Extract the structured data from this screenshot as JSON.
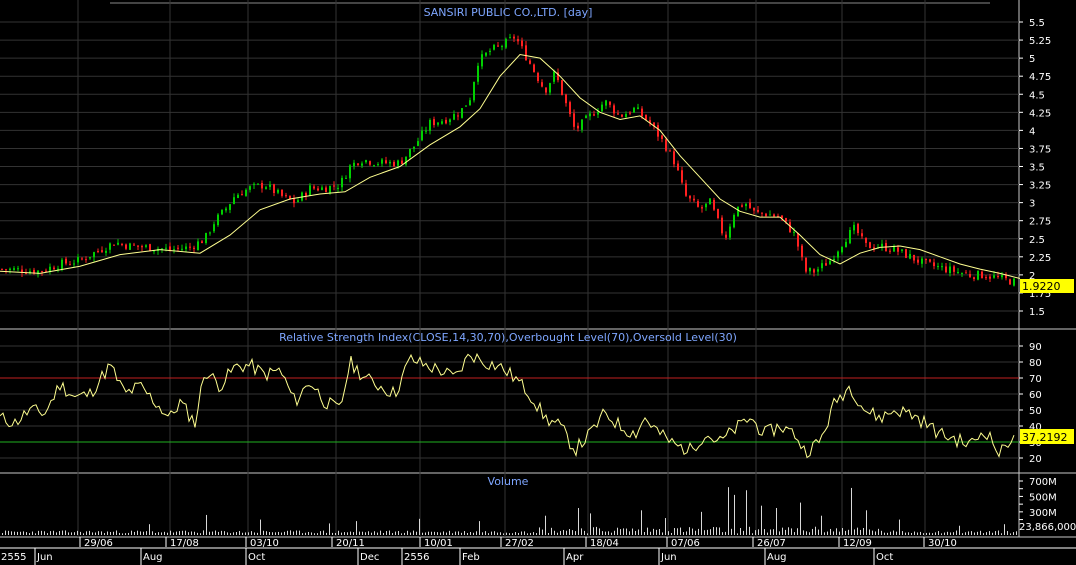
{
  "chart_data": [
    {
      "panel": "price",
      "type": "candlestick",
      "title": "SANSIRI PUBLIC CO.,LTD. [day]",
      "y_ticks": [
        "5.5",
        "5.25",
        "5",
        "4.75",
        "4.5",
        "4.25",
        "4",
        "3.75",
        "3.5",
        "3.25",
        "3",
        "2.75",
        "2.5",
        "2.25",
        "2",
        "1.75",
        "1.5"
      ],
      "ylim": [
        1.35,
        5.7
      ],
      "last_value_label": "1.9220",
      "series": [
        {
          "kind": "candles",
          "color_up": "#00d000",
          "color_down": "#ff2020",
          "x_range": [
            0,
            1020
          ],
          "close_path": [
            [
              0,
              2.08
            ],
            [
              20,
              2.07
            ],
            [
              40,
              2.05
            ],
            [
              60,
              2.15
            ],
            [
              80,
              2.2
            ],
            [
              100,
              2.35
            ],
            [
              115,
              2.45
            ],
            [
              130,
              2.4
            ],
            [
              150,
              2.38
            ],
            [
              170,
              2.35
            ],
            [
              190,
              2.38
            ],
            [
              205,
              2.5
            ],
            [
              215,
              2.75
            ],
            [
              225,
              2.9
            ],
            [
              235,
              3.1
            ],
            [
              250,
              3.2
            ],
            [
              265,
              3.25
            ],
            [
              280,
              3.1
            ],
            [
              295,
              3.0
            ],
            [
              310,
              3.2
            ],
            [
              325,
              3.2
            ],
            [
              340,
              3.25
            ],
            [
              350,
              3.5
            ],
            [
              360,
              3.6
            ],
            [
              380,
              3.55
            ],
            [
              400,
              3.55
            ],
            [
              415,
              3.8
            ],
            [
              430,
              4.1
            ],
            [
              445,
              4.15
            ],
            [
              460,
              4.25
            ],
            [
              470,
              4.45
            ],
            [
              478,
              4.95
            ],
            [
              490,
              5.1
            ],
            [
              505,
              5.2
            ],
            [
              515,
              5.3
            ],
            [
              525,
              5.05
            ],
            [
              535,
              4.8
            ],
            [
              545,
              4.55
            ],
            [
              555,
              4.8
            ],
            [
              565,
              4.4
            ],
            [
              575,
              4.0
            ],
            [
              590,
              4.2
            ],
            [
              605,
              4.4
            ],
            [
              620,
              4.2
            ],
            [
              635,
              4.3
            ],
            [
              650,
              4.1
            ],
            [
              665,
              3.8
            ],
            [
              675,
              3.55
            ],
            [
              685,
              3.1
            ],
            [
              700,
              2.9
            ],
            [
              710,
              3.0
            ],
            [
              725,
              2.5
            ],
            [
              735,
              2.9
            ],
            [
              745,
              3.0
            ],
            [
              755,
              2.85
            ],
            [
              765,
              2.85
            ],
            [
              780,
              2.8
            ],
            [
              795,
              2.55
            ],
            [
              805,
              2.05
            ],
            [
              815,
              2.05
            ],
            [
              830,
              2.2
            ],
            [
              845,
              2.5
            ],
            [
              855,
              2.65
            ],
            [
              865,
              2.4
            ],
            [
              880,
              2.4
            ],
            [
              895,
              2.35
            ],
            [
              910,
              2.25
            ],
            [
              925,
              2.15
            ],
            [
              940,
              2.1
            ],
            [
              955,
              2.05
            ],
            [
              970,
              2.0
            ],
            [
              985,
              2.0
            ],
            [
              1000,
              1.95
            ],
            [
              1015,
              1.9
            ]
          ]
        },
        {
          "kind": "moving-average",
          "color": "#ffff90",
          "path": [
            [
              0,
              2.05
            ],
            [
              40,
              2.02
            ],
            [
              80,
              2.12
            ],
            [
              120,
              2.28
            ],
            [
              160,
              2.35
            ],
            [
              200,
              2.3
            ],
            [
              230,
              2.55
            ],
            [
              260,
              2.9
            ],
            [
              290,
              3.05
            ],
            [
              320,
              3.12
            ],
            [
              345,
              3.15
            ],
            [
              370,
              3.35
            ],
            [
              400,
              3.5
            ],
            [
              430,
              3.8
            ],
            [
              460,
              4.05
            ],
            [
              480,
              4.3
            ],
            [
              500,
              4.75
            ],
            [
              520,
              5.05
            ],
            [
              540,
              5.0
            ],
            [
              560,
              4.75
            ],
            [
              580,
              4.45
            ],
            [
              600,
              4.25
            ],
            [
              620,
              4.15
            ],
            [
              640,
              4.2
            ],
            [
              660,
              4.0
            ],
            [
              680,
              3.65
            ],
            [
              700,
              3.35
            ],
            [
              720,
              3.05
            ],
            [
              740,
              2.88
            ],
            [
              760,
              2.8
            ],
            [
              780,
              2.8
            ],
            [
              800,
              2.55
            ],
            [
              820,
              2.28
            ],
            [
              840,
              2.15
            ],
            [
              860,
              2.3
            ],
            [
              880,
              2.38
            ],
            [
              900,
              2.4
            ],
            [
              920,
              2.35
            ],
            [
              940,
              2.25
            ],
            [
              960,
              2.15
            ],
            [
              980,
              2.08
            ],
            [
              1000,
              2.02
            ],
            [
              1020,
              1.95
            ]
          ]
        }
      ]
    },
    {
      "panel": "rsi",
      "type": "line",
      "title": "Relative Strength Index(CLOSE,14,30,70),Overbought Level(70),Oversold Level(30)",
      "y_ticks": [
        "90",
        "80",
        "70",
        "60",
        "50",
        "40",
        "30",
        "20"
      ],
      "ylim": [
        10,
        95
      ],
      "overbought": 70,
      "oversold": 30,
      "last_value_label": "37.2192",
      "line_color": "#ffff90",
      "path": [
        [
          0,
          45
        ],
        [
          15,
          42
        ],
        [
          30,
          50
        ],
        [
          45,
          48
        ],
        [
          60,
          66
        ],
        [
          75,
          58
        ],
        [
          90,
          60
        ],
        [
          110,
          78
        ],
        [
          125,
          60
        ],
        [
          140,
          65
        ],
        [
          155,
          55
        ],
        [
          170,
          45
        ],
        [
          180,
          55
        ],
        [
          195,
          42
        ],
        [
          205,
          75
        ],
        [
          220,
          65
        ],
        [
          235,
          77
        ],
        [
          250,
          78
        ],
        [
          265,
          72
        ],
        [
          280,
          75
        ],
        [
          295,
          55
        ],
        [
          310,
          68
        ],
        [
          325,
          55
        ],
        [
          340,
          50
        ],
        [
          350,
          80
        ],
        [
          365,
          70
        ],
        [
          380,
          65
        ],
        [
          395,
          60
        ],
        [
          410,
          82
        ],
        [
          425,
          78
        ],
        [
          440,
          75
        ],
        [
          455,
          70
        ],
        [
          470,
          85
        ],
        [
          485,
          80
        ],
        [
          500,
          77
        ],
        [
          515,
          70
        ],
        [
          530,
          60
        ],
        [
          545,
          45
        ],
        [
          560,
          40
        ],
        [
          575,
          25
        ],
        [
          590,
          35
        ],
        [
          605,
          48
        ],
        [
          620,
          40
        ],
        [
          635,
          35
        ],
        [
          645,
          45
        ],
        [
          660,
          35
        ],
        [
          675,
          28
        ],
        [
          690,
          25
        ],
        [
          705,
          35
        ],
        [
          720,
          30
        ],
        [
          735,
          38
        ],
        [
          750,
          45
        ],
        [
          765,
          35
        ],
        [
          780,
          40
        ],
        [
          795,
          35
        ],
        [
          805,
          24
        ],
        [
          820,
          30
        ],
        [
          835,
          55
        ],
        [
          850,
          65
        ],
        [
          865,
          50
        ],
        [
          880,
          45
        ],
        [
          895,
          50
        ],
        [
          910,
          48
        ],
        [
          925,
          42
        ],
        [
          940,
          35
        ],
        [
          955,
          32
        ],
        [
          970,
          28
        ],
        [
          985,
          38
        ],
        [
          1000,
          22
        ],
        [
          1015,
          37
        ]
      ]
    },
    {
      "panel": "volume",
      "type": "bar",
      "title": "Volume",
      "y_ticks": [
        "700M",
        "600M",
        "500M",
        "400M",
        "300M",
        "200M"
      ],
      "ylim": [
        0,
        820
      ],
      "unit": "M",
      "last_value_label": "23,866,000",
      "bar_color": "#d8d8d8",
      "spikes": [
        [
          150,
          140
        ],
        [
          205,
          260
        ],
        [
          260,
          200
        ],
        [
          330,
          150
        ],
        [
          355,
          180
        ],
        [
          420,
          210
        ],
        [
          480,
          180
        ],
        [
          545,
          250
        ],
        [
          578,
          350
        ],
        [
          590,
          280
        ],
        [
          640,
          320
        ],
        [
          665,
          220
        ],
        [
          700,
          300
        ],
        [
          727,
          620
        ],
        [
          735,
          520
        ],
        [
          745,
          580
        ],
        [
          760,
          380
        ],
        [
          775,
          350
        ],
        [
          800,
          420
        ],
        [
          820,
          250
        ],
        [
          850,
          610
        ],
        [
          865,
          320
        ],
        [
          900,
          200
        ],
        [
          960,
          120
        ],
        [
          1005,
          140
        ]
      ]
    }
  ],
  "x_axis": {
    "lower_labels": [
      "2555",
      "Jun",
      "Aug",
      "Oct",
      "Dec",
      "2556",
      "Feb",
      "Apr",
      "Jun",
      "Aug",
      "Oct"
    ],
    "upper_labels": [
      "29/06",
      "17/08",
      "03/10",
      "20/11",
      "10/01",
      "27/02",
      "18/04",
      "07/06",
      "26/07",
      "12/09",
      "30/10"
    ]
  },
  "colors": {
    "background": "#000000",
    "panel_border": "#c8c8c8",
    "grid": "#333333",
    "title": "#7ea6ff",
    "axis_text": "#ffffff",
    "overbought": "#c02020",
    "oversold": "#20b020",
    "highlight_box": "#ffff00"
  }
}
